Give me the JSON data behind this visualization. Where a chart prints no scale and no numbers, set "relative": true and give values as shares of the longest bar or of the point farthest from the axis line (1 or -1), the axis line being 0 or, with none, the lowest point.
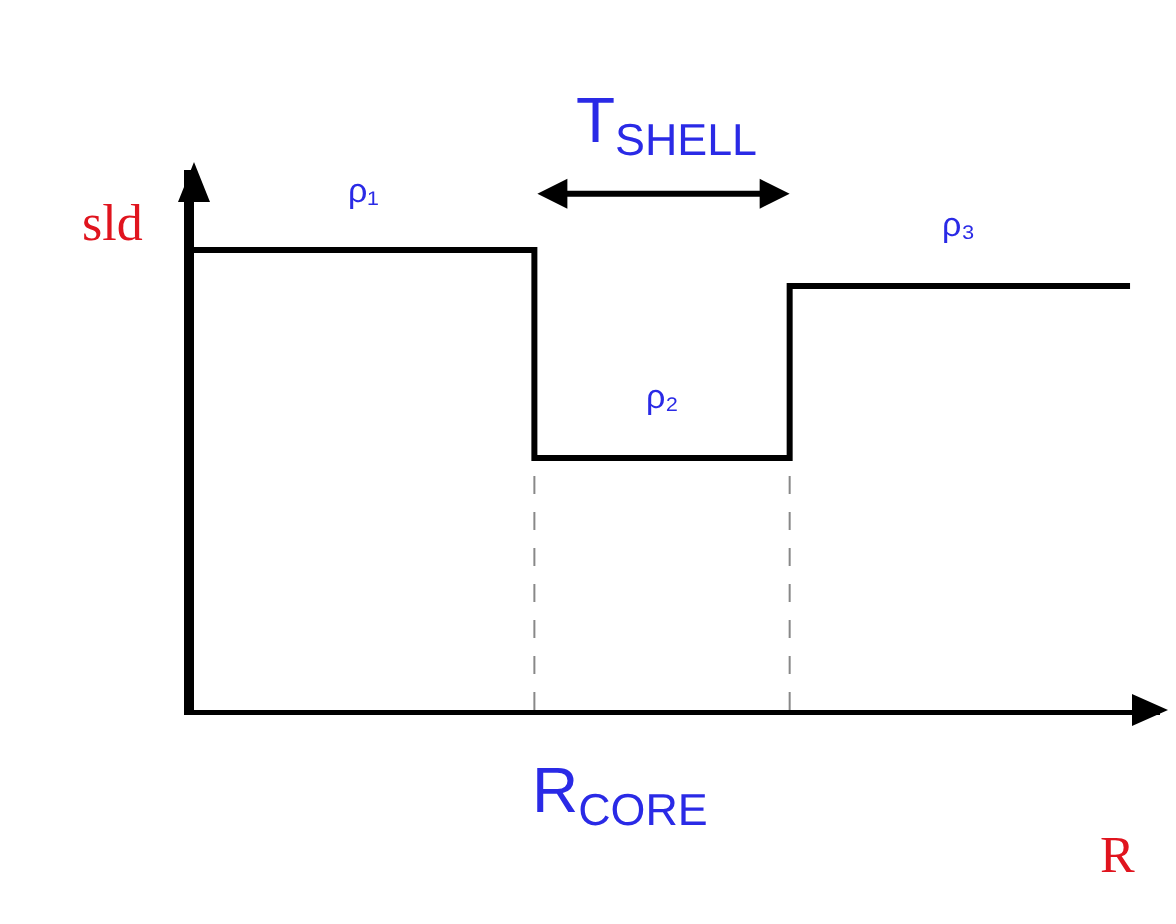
{
  "chart_data": {
    "type": "step",
    "relative": true,
    "categories": [
      null,
      null,
      null,
      null,
      null,
      null,
      null,
      null,
      null,
      null,
      null,
      null
    ],
    "values": [
      1,
      1,
      1,
      1,
      0.548,
      0.548,
      0.548,
      0.922,
      0.922,
      0.922,
      0.922,
      0.922
    ],
    "color": "#000000",
    "xlabel": "R",
    "ylabel": "sld",
    "annotations": [
      "ρ₁",
      "ρ₂",
      "ρ₃",
      "T$_{SHELL}$",
      "R$_{CORE}$"
    ]
  }
}
